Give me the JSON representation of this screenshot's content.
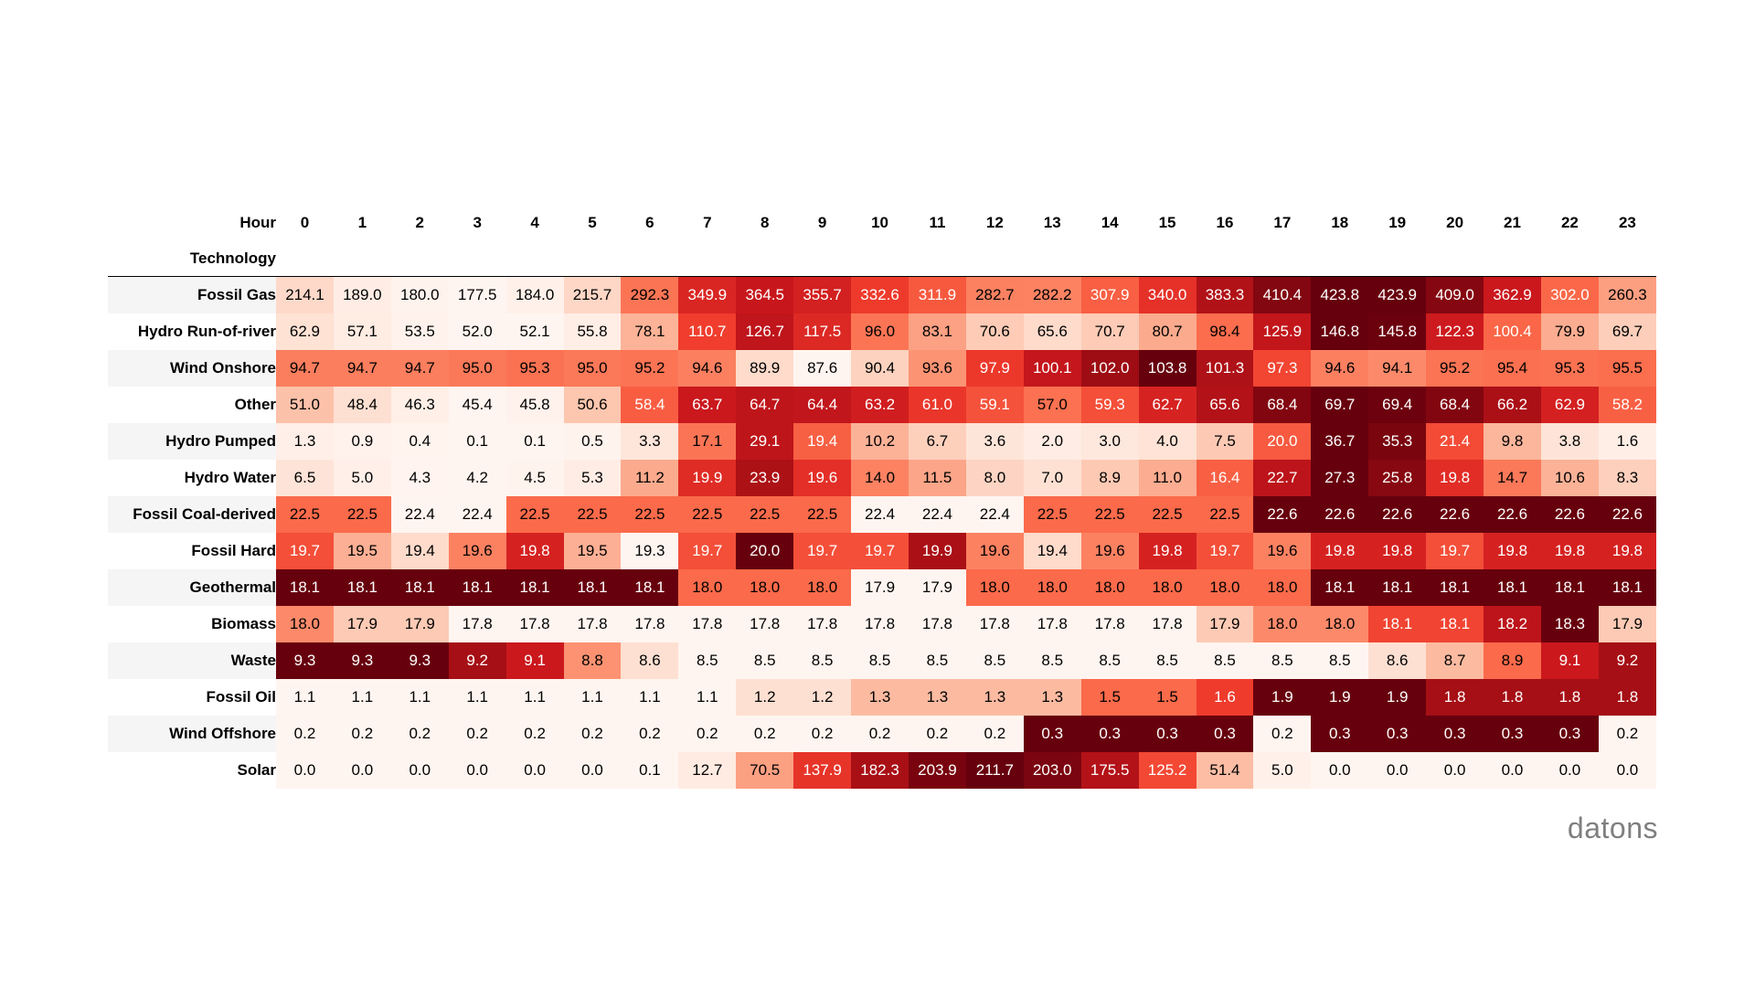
{
  "brand": "datons",
  "chart_data": {
    "type": "heatmap",
    "title": "",
    "column_axis_label": "Hour",
    "row_axis_label": "Technology",
    "colormap": "Reds (per row)",
    "columns": [
      "0",
      "1",
      "2",
      "3",
      "4",
      "5",
      "6",
      "7",
      "8",
      "9",
      "10",
      "11",
      "12",
      "13",
      "14",
      "15",
      "16",
      "17",
      "18",
      "19",
      "20",
      "21",
      "22",
      "23"
    ],
    "rows": [
      {
        "name": "Fossil Gas",
        "values": [
          214.1,
          189.0,
          180.0,
          177.5,
          184.0,
          215.7,
          292.3,
          349.9,
          364.5,
          355.7,
          332.6,
          311.9,
          282.7,
          282.2,
          307.9,
          340.0,
          383.3,
          410.4,
          423.8,
          423.9,
          409.0,
          362.9,
          302.0,
          260.3
        ]
      },
      {
        "name": "Hydro Run-of-river",
        "values": [
          62.9,
          57.1,
          53.5,
          52.0,
          52.1,
          55.8,
          78.1,
          110.7,
          126.7,
          117.5,
          96.0,
          83.1,
          70.6,
          65.6,
          70.7,
          80.7,
          98.4,
          125.9,
          146.8,
          145.8,
          122.3,
          100.4,
          79.9,
          69.7
        ]
      },
      {
        "name": "Wind Onshore",
        "values": [
          94.7,
          94.7,
          94.7,
          95.0,
          95.3,
          95.0,
          95.2,
          94.6,
          89.9,
          87.6,
          90.4,
          93.6,
          97.9,
          100.1,
          102.0,
          103.8,
          101.3,
          97.3,
          94.6,
          94.1,
          95.2,
          95.4,
          95.3,
          95.5
        ]
      },
      {
        "name": "Other",
        "values": [
          51.0,
          48.4,
          46.3,
          45.4,
          45.8,
          50.6,
          58.4,
          63.7,
          64.7,
          64.4,
          63.2,
          61.0,
          59.1,
          57.0,
          59.3,
          62.7,
          65.6,
          68.4,
          69.7,
          69.4,
          68.4,
          66.2,
          62.9,
          58.2
        ]
      },
      {
        "name": "Hydro Pumped",
        "values": [
          1.3,
          0.9,
          0.4,
          0.1,
          0.1,
          0.5,
          3.3,
          17.1,
          29.1,
          19.4,
          10.2,
          6.7,
          3.6,
          2.0,
          3.0,
          4.0,
          7.5,
          20.0,
          36.7,
          35.3,
          21.4,
          9.8,
          3.8,
          1.6
        ]
      },
      {
        "name": "Hydro Water",
        "values": [
          6.5,
          5.0,
          4.3,
          4.2,
          4.5,
          5.3,
          11.2,
          19.9,
          23.9,
          19.6,
          14.0,
          11.5,
          8.0,
          7.0,
          8.9,
          11.0,
          16.4,
          22.7,
          27.3,
          25.8,
          19.8,
          14.7,
          10.6,
          8.3
        ]
      },
      {
        "name": "Fossil Coal-derived",
        "values": [
          22.5,
          22.5,
          22.4,
          22.4,
          22.5,
          22.5,
          22.5,
          22.5,
          22.5,
          22.5,
          22.4,
          22.4,
          22.4,
          22.5,
          22.5,
          22.5,
          22.5,
          22.6,
          22.6,
          22.6,
          22.6,
          22.6,
          22.6,
          22.6
        ]
      },
      {
        "name": "Fossil Hard",
        "values": [
          19.7,
          19.5,
          19.4,
          19.6,
          19.8,
          19.5,
          19.3,
          19.7,
          20.0,
          19.7,
          19.7,
          19.9,
          19.6,
          19.4,
          19.6,
          19.8,
          19.7,
          19.6,
          19.8,
          19.8,
          19.7,
          19.8,
          19.8,
          19.8
        ]
      },
      {
        "name": "Geothermal",
        "values": [
          18.1,
          18.1,
          18.1,
          18.1,
          18.1,
          18.1,
          18.1,
          18.0,
          18.0,
          18.0,
          17.9,
          17.9,
          18.0,
          18.0,
          18.0,
          18.0,
          18.0,
          18.0,
          18.1,
          18.1,
          18.1,
          18.1,
          18.1,
          18.1
        ]
      },
      {
        "name": "Biomass",
        "values": [
          18.0,
          17.9,
          17.9,
          17.8,
          17.8,
          17.8,
          17.8,
          17.8,
          17.8,
          17.8,
          17.8,
          17.8,
          17.8,
          17.8,
          17.8,
          17.8,
          17.9,
          18.0,
          18.0,
          18.1,
          18.1,
          18.2,
          18.3,
          17.9
        ]
      },
      {
        "name": "Waste",
        "values": [
          9.3,
          9.3,
          9.3,
          9.2,
          9.1,
          8.8,
          8.6,
          8.5,
          8.5,
          8.5,
          8.5,
          8.5,
          8.5,
          8.5,
          8.5,
          8.5,
          8.5,
          8.5,
          8.5,
          8.6,
          8.7,
          8.9,
          9.1,
          9.2
        ]
      },
      {
        "name": "Fossil Oil",
        "values": [
          1.1,
          1.1,
          1.1,
          1.1,
          1.1,
          1.1,
          1.1,
          1.1,
          1.2,
          1.2,
          1.3,
          1.3,
          1.3,
          1.3,
          1.5,
          1.5,
          1.6,
          1.9,
          1.9,
          1.9,
          1.8,
          1.8,
          1.8,
          1.8
        ]
      },
      {
        "name": "Wind Offshore",
        "values": [
          0.2,
          0.2,
          0.2,
          0.2,
          0.2,
          0.2,
          0.2,
          0.2,
          0.2,
          0.2,
          0.2,
          0.2,
          0.2,
          0.3,
          0.3,
          0.3,
          0.3,
          0.2,
          0.3,
          0.3,
          0.3,
          0.3,
          0.3,
          0.2
        ]
      },
      {
        "name": "Solar",
        "values": [
          0.0,
          0.0,
          0.0,
          0.0,
          0.0,
          0.0,
          0.1,
          12.7,
          70.5,
          137.9,
          182.3,
          203.9,
          211.7,
          203.0,
          175.5,
          125.2,
          51.4,
          5.0,
          0.0,
          0.0,
          0.0,
          0.0,
          0.0,
          0.0
        ]
      }
    ]
  }
}
